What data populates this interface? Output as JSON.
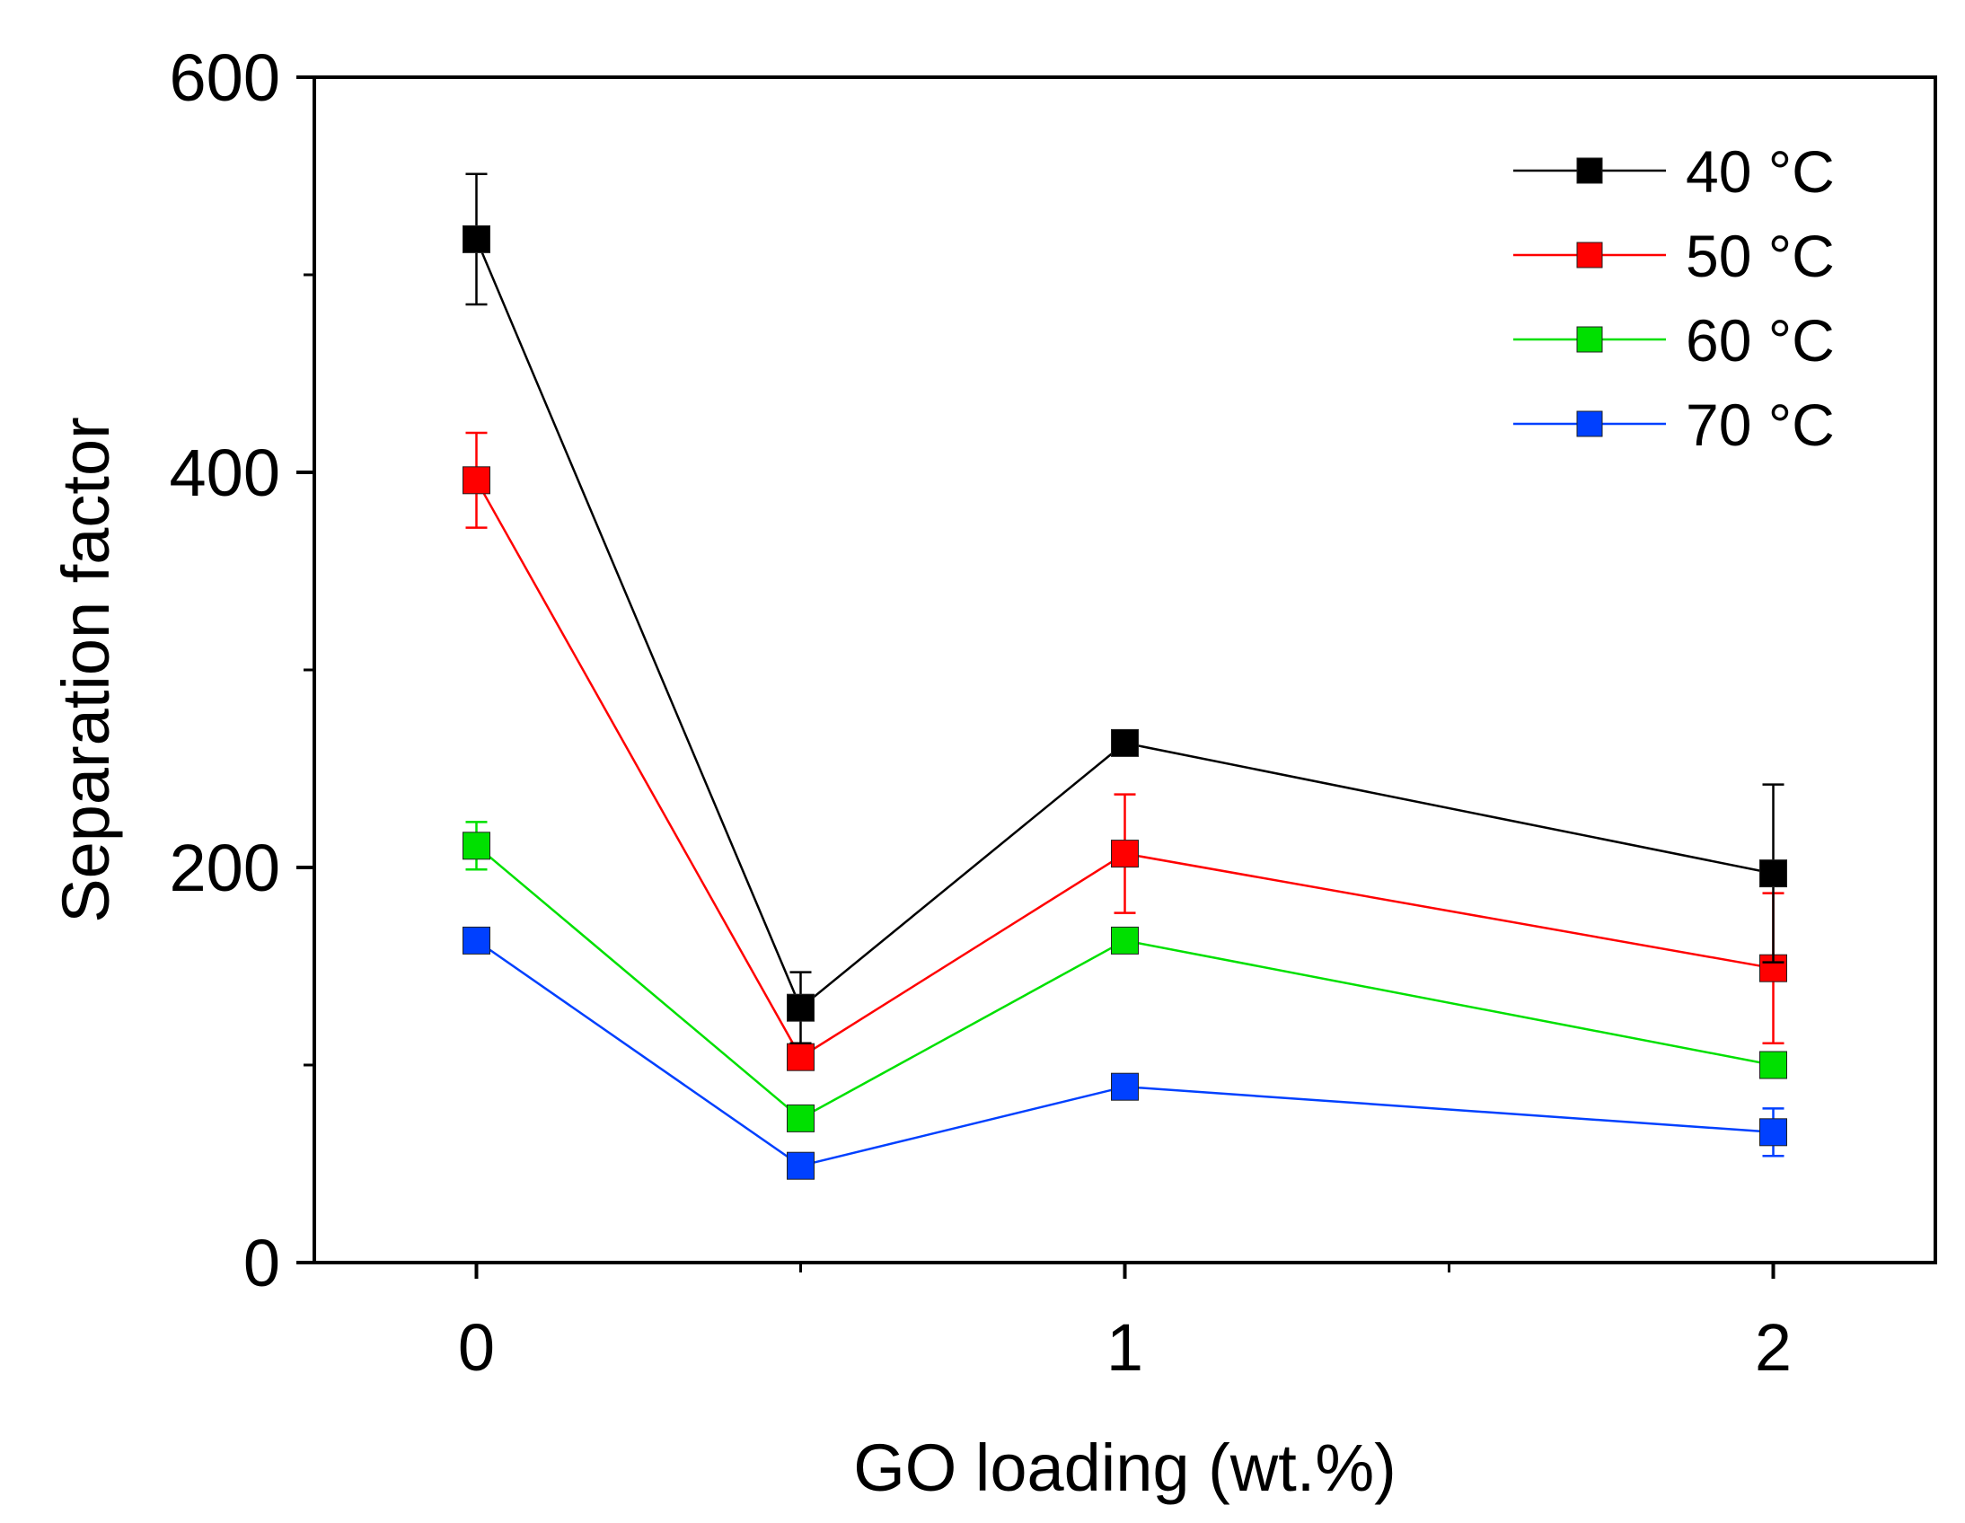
{
  "chart_data": {
    "type": "line",
    "title": "",
    "xlabel": "GO loading (wt.%)",
    "ylabel": "Separation factor",
    "xlim": [
      -0.25,
      2.25
    ],
    "ylim": [
      0,
      600
    ],
    "x_ticks": [
      0,
      1,
      2
    ],
    "x_tick_labels": [
      "0",
      "1",
      "2"
    ],
    "x_minor_ticks": [
      0.5,
      1.5
    ],
    "y_ticks": [
      0,
      200,
      400,
      600
    ],
    "y_tick_labels": [
      "0",
      "200",
      "400",
      "600"
    ],
    "y_minor_ticks": [
      100,
      300,
      500
    ],
    "grid": false,
    "legend_position": "top-right",
    "x": [
      0,
      0.5,
      1,
      2
    ],
    "series": [
      {
        "name": "40 °C",
        "color": "#000000",
        "values": [
          518,
          129,
          263,
          197
        ],
        "errors": [
          33,
          18,
          0,
          45
        ]
      },
      {
        "name": "50 °C",
        "color": "#ff0000",
        "values": [
          396,
          104,
          207,
          149
        ],
        "errors": [
          24,
          4,
          30,
          38
        ]
      },
      {
        "name": "60 °C",
        "color": "#00e000",
        "values": [
          211,
          73,
          163,
          100
        ],
        "errors": [
          12,
          3,
          5,
          6
        ]
      },
      {
        "name": "70 °C",
        "color": "#0040ff",
        "values": [
          163,
          49,
          89,
          66
        ],
        "errors": [
          0,
          0,
          0,
          12
        ]
      }
    ]
  }
}
